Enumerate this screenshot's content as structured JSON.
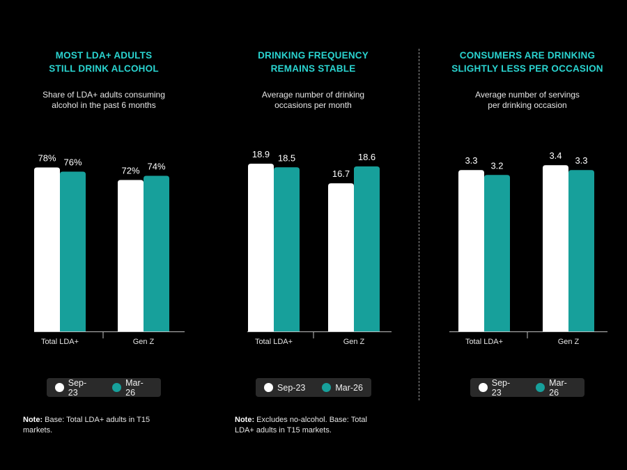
{
  "colors": {
    "sep23": "#ffffff",
    "mar26": "#17a09b",
    "title": "#2ad4d0",
    "axis": "#bfbfbf"
  },
  "legend": {
    "sep23_label": "Sep-23",
    "mar26_label": "Mar-26"
  },
  "notes": {
    "left": {
      "label": "Note:",
      "text": " Base: Total LDA+ adults in T15 markets."
    },
    "middle": {
      "label": "Note:",
      "text": " Excludes no-alcohol. Base: Total LDA+ adults in T15 markets."
    }
  },
  "panels": [
    {
      "title": "MOST LDA+ ADULTS\nSTILL DRINK ALCOHOL",
      "subtitle": "Share of LDA+ adults consuming\nalcohol in the past 6 months"
    },
    {
      "title": "DRINKING FREQUENCY\nREMAINS STABLE",
      "subtitle": "Average number of drinking\noccasions per month"
    },
    {
      "title": "CONSUMERS ARE DRINKING\nSLIGHTLY LESS PER OCCASION",
      "subtitle": "Average number of servings\nper drinking occasion"
    }
  ],
  "chart_data": [
    {
      "type": "bar",
      "title": "MOST LDA+ ADULTS STILL DRINK ALCOHOL",
      "subtitle": "Share of LDA+ adults consuming alcohol in the past 6 months",
      "categories": [
        "Total LDA+",
        "Gen Z"
      ],
      "series": [
        {
          "name": "Sep-23",
          "values": [
            78,
            72
          ],
          "labels": [
            "78%",
            "72%"
          ]
        },
        {
          "name": "Mar-26",
          "values": [
            76,
            74
          ],
          "labels": [
            "76%",
            "74%"
          ]
        }
      ],
      "ylim": [
        0,
        100
      ],
      "grid": false,
      "legend": "bottom"
    },
    {
      "type": "bar",
      "title": "DRINKING FREQUENCY REMAINS STABLE",
      "subtitle": "Average number of drinking occasions per month",
      "categories": [
        "Total LDA+",
        "Gen Z"
      ],
      "series": [
        {
          "name": "Sep-23",
          "values": [
            18.9,
            16.7
          ],
          "labels": [
            "18.9",
            "16.7"
          ]
        },
        {
          "name": "Mar-26",
          "values": [
            18.5,
            18.6
          ],
          "labels": [
            "18.5",
            "18.6"
          ]
        }
      ],
      "ylim": [
        0,
        23.7
      ],
      "grid": false,
      "legend": "bottom"
    },
    {
      "type": "bar",
      "title": "CONSUMERS ARE DRINKING SLIGHTLY LESS PER OCCASION",
      "subtitle": "Average number of servings per drinking occasion",
      "categories": [
        "Total LDA+",
        "Gen Z"
      ],
      "series": [
        {
          "name": "Sep-23",
          "values": [
            3.3,
            3.4
          ],
          "labels": [
            "3.3",
            "3.4"
          ]
        },
        {
          "name": "Mar-26",
          "values": [
            3.2,
            3.3
          ],
          "labels": [
            "3.2",
            "3.3"
          ]
        }
      ],
      "ylim": [
        0,
        4.3
      ],
      "grid": false,
      "legend": "bottom"
    }
  ]
}
